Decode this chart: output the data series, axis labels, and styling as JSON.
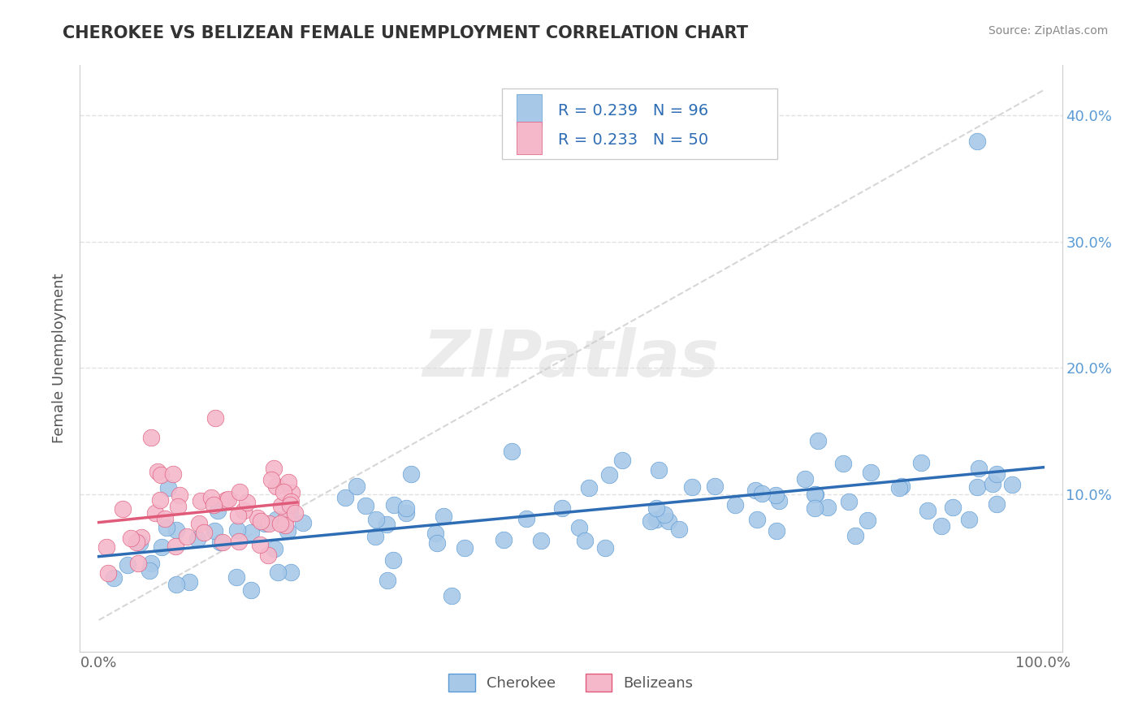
{
  "title": "CHEROKEE VS BELIZEAN FEMALE UNEMPLOYMENT CORRELATION CHART",
  "source_text": "Source: ZipAtlas.com",
  "ylabel": "Female Unemployment",
  "cherokee_color": "#a8c8e8",
  "cherokee_edge_color": "#5b9bd5",
  "belizean_color": "#f4b8ca",
  "belizean_edge_color": "#e05a7a",
  "trendline_cherokee_color": "#2e6db4",
  "trendline_belizean_color": "#e05a7a",
  "diagonal_color": "#cccccc",
  "legend_text_color": "#2e6db4",
  "title_color": "#333333",
  "source_color": "#888888",
  "ylabel_color": "#555555",
  "axis_tick_color": "#5b9bd5",
  "cherokee_R": 0.239,
  "cherokee_N": 96,
  "belizean_R": 0.233,
  "belizean_N": 50
}
